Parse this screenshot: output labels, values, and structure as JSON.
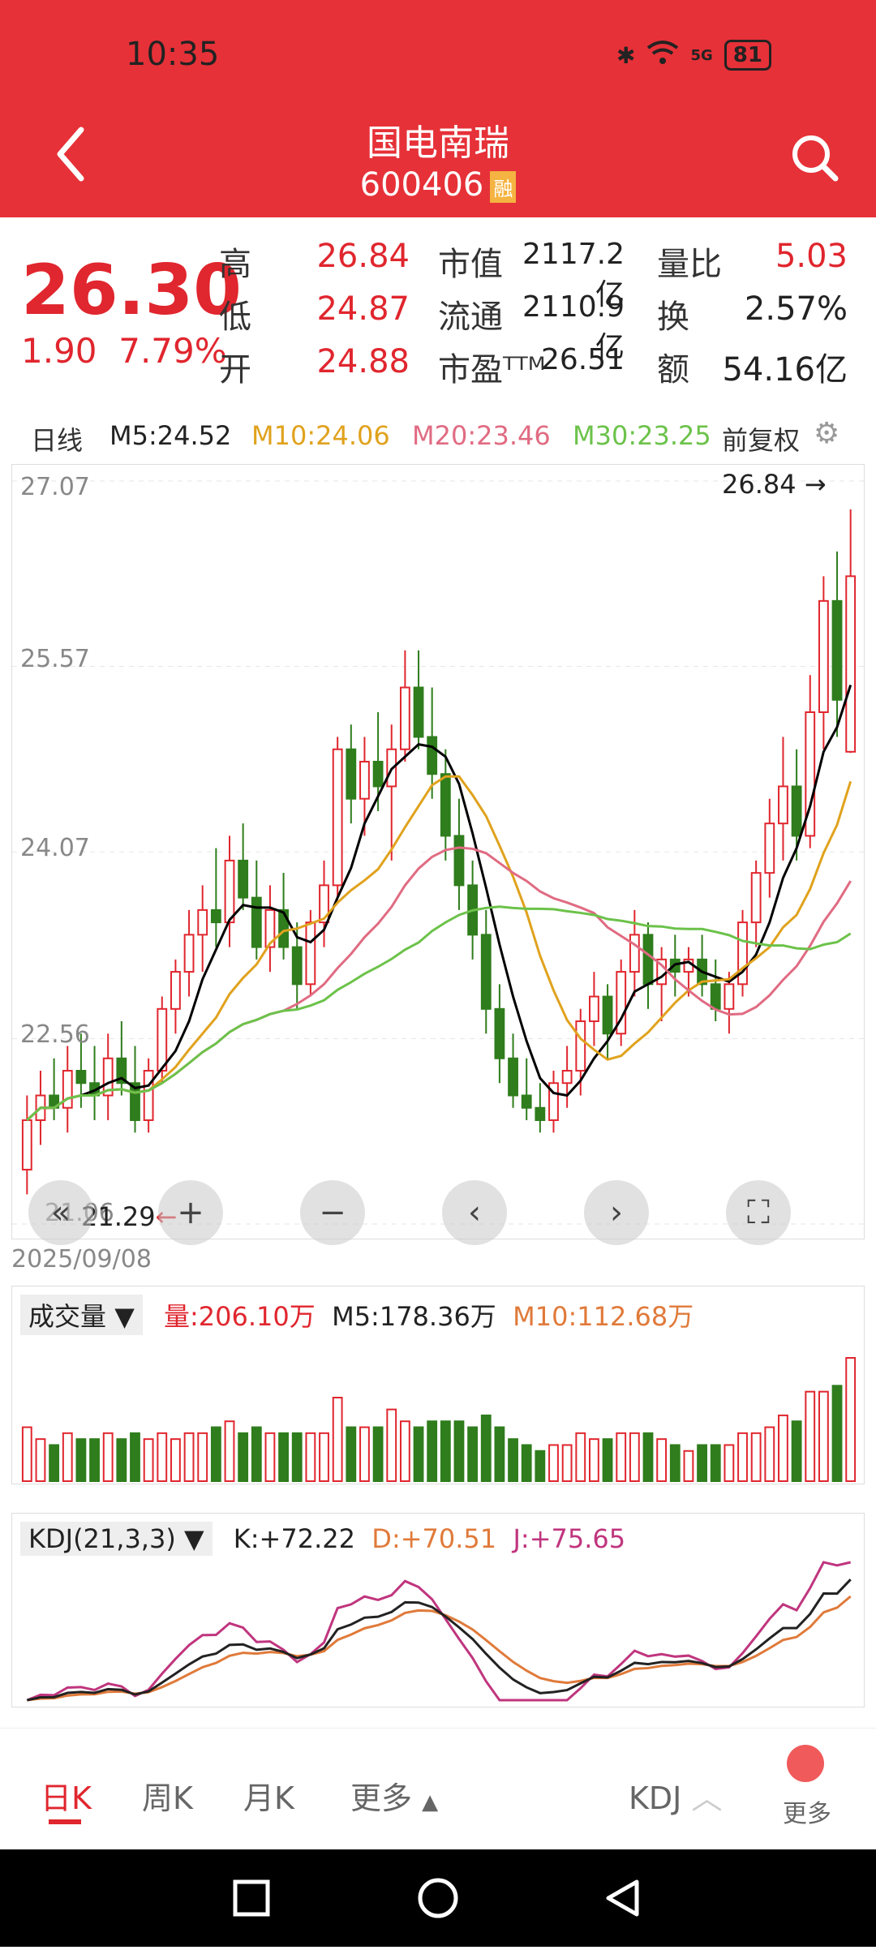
{
  "status": {
    "time": "10:35",
    "network": "5G",
    "battery": "81"
  },
  "header": {
    "title": "国电南瑞",
    "code": "600406",
    "badge": "融"
  },
  "quote": {
    "price": "26.30",
    "change": "1.90",
    "change_pct": "7.79%",
    "high_label": "高",
    "high": "26.84",
    "low_label": "低",
    "low": "24.87",
    "open_label": "开",
    "open": "24.88",
    "mktcap_label": "市值",
    "mktcap": "2117.2亿",
    "float_label": "流通",
    "float": "2110.9亿",
    "pe_label": "市盈ᵀᵀᴹ",
    "pe": "26.51",
    "volratio_label": "量比",
    "volratio": "5.03",
    "turnover_label": "换",
    "turnover": "2.57%",
    "amount_label": "额",
    "amount": "54.16亿"
  },
  "ma": {
    "period": "日线",
    "m5": "M5:24.52",
    "m10": "M10:24.06",
    "m20": "M20:23.46",
    "m30": "M30:23.25",
    "adjust": "前复权"
  },
  "chart_axes": {
    "y1": "27.07",
    "y2": "25.57",
    "y3": "24.07",
    "y4": "22.56",
    "y5": "21.06",
    "high_mark": "26.84",
    "low_mark": "21.29",
    "date": "2025/09/08"
  },
  "volume": {
    "dropdown": "成交量",
    "vol": "量:206.10万",
    "m5": "M5:178.36万",
    "m10": "M10:112.68万"
  },
  "kdj": {
    "dropdown": "KDJ(21,3,3)",
    "k": "K:+72.22",
    "d": "D:+70.51",
    "j": "J:+75.65"
  },
  "tabs": {
    "day": "日K",
    "week": "周K",
    "month": "月K",
    "more": "更多",
    "indicator": "KDJ",
    "more2": "更多"
  },
  "colors": {
    "up": "#e0262e",
    "down": "#2f7d1c",
    "m5": "#000000",
    "m10": "#e0a21d",
    "m20": "#e06b82",
    "m30": "#6cc24a"
  },
  "chart_data": {
    "type": "candlestick",
    "title": "",
    "ylim": [
      21.06,
      27.07
    ],
    "y_ticks": [
      27.07,
      25.57,
      24.07,
      22.56,
      21.06
    ],
    "ohlc": [
      [
        21.5,
        22.1,
        21.3,
        21.9
      ],
      [
        21.9,
        22.3,
        21.7,
        22.1
      ],
      [
        22.1,
        22.4,
        21.9,
        22.0
      ],
      [
        22.0,
        22.5,
        21.8,
        22.3
      ],
      [
        22.3,
        22.6,
        22.0,
        22.2
      ],
      [
        22.2,
        22.5,
        21.9,
        22.1
      ],
      [
        22.1,
        22.6,
        21.9,
        22.4
      ],
      [
        22.4,
        22.7,
        22.1,
        22.2
      ],
      [
        22.2,
        22.5,
        21.8,
        21.9
      ],
      [
        21.9,
        22.4,
        21.8,
        22.3
      ],
      [
        22.3,
        22.9,
        22.2,
        22.8
      ],
      [
        22.8,
        23.2,
        22.6,
        23.1
      ],
      [
        23.1,
        23.6,
        22.9,
        23.4
      ],
      [
        23.4,
        23.8,
        23.1,
        23.6
      ],
      [
        23.6,
        24.1,
        23.3,
        23.5
      ],
      [
        23.5,
        24.2,
        23.3,
        24.0
      ],
      [
        24.0,
        24.3,
        23.6,
        23.7
      ],
      [
        23.7,
        24.0,
        23.2,
        23.3
      ],
      [
        23.3,
        23.8,
        23.1,
        23.6
      ],
      [
        23.6,
        23.9,
        23.2,
        23.3
      ],
      [
        23.3,
        23.5,
        22.8,
        23.0
      ],
      [
        23.0,
        23.6,
        22.9,
        23.5
      ],
      [
        23.5,
        24.0,
        23.3,
        23.8
      ],
      [
        23.8,
        25.0,
        23.7,
        24.9
      ],
      [
        24.9,
        25.1,
        24.3,
        24.5
      ],
      [
        24.5,
        25.0,
        24.2,
        24.8
      ],
      [
        24.8,
        25.2,
        24.4,
        24.6
      ],
      [
        24.6,
        25.1,
        24.0,
        24.9
      ],
      [
        24.9,
        25.7,
        24.8,
        25.4
      ],
      [
        25.4,
        25.7,
        24.9,
        25.0
      ],
      [
        25.0,
        25.4,
        24.5,
        24.7
      ],
      [
        24.7,
        24.9,
        24.0,
        24.2
      ],
      [
        24.2,
        24.5,
        23.6,
        23.8
      ],
      [
        23.8,
        24.0,
        23.2,
        23.4
      ],
      [
        23.4,
        23.6,
        22.6,
        22.8
      ],
      [
        22.8,
        23.0,
        22.2,
        22.4
      ],
      [
        22.4,
        22.6,
        22.0,
        22.1
      ],
      [
        22.1,
        22.4,
        21.9,
        22.0
      ],
      [
        22.0,
        22.2,
        21.8,
        21.9
      ],
      [
        21.9,
        22.3,
        21.8,
        22.2
      ],
      [
        22.2,
        22.5,
        22.0,
        22.3
      ],
      [
        22.3,
        22.8,
        22.1,
        22.7
      ],
      [
        22.7,
        23.1,
        22.5,
        22.9
      ],
      [
        22.9,
        23.0,
        22.4,
        22.6
      ],
      [
        22.6,
        23.2,
        22.5,
        23.1
      ],
      [
        23.1,
        23.6,
        22.9,
        23.4
      ],
      [
        23.4,
        23.5,
        22.8,
        23.0
      ],
      [
        23.0,
        23.3,
        22.7,
        23.2
      ],
      [
        23.2,
        23.4,
        22.9,
        23.1
      ],
      [
        23.1,
        23.3,
        22.9,
        23.2
      ],
      [
        23.2,
        23.4,
        22.9,
        23.0
      ],
      [
        23.0,
        23.2,
        22.7,
        22.8
      ],
      [
        22.8,
        23.1,
        22.6,
        23.0
      ],
      [
        23.0,
        23.6,
        22.9,
        23.5
      ],
      [
        23.5,
        24.0,
        23.3,
        23.9
      ],
      [
        23.9,
        24.5,
        23.7,
        24.3
      ],
      [
        24.3,
        25.0,
        24.0,
        24.6
      ],
      [
        24.6,
        24.9,
        24.0,
        24.2
      ],
      [
        24.2,
        25.5,
        24.1,
        25.2
      ],
      [
        25.2,
        26.3,
        24.9,
        26.1
      ],
      [
        26.1,
        26.5,
        25.0,
        25.3
      ],
      [
        24.88,
        26.84,
        24.87,
        26.3
      ]
    ]
  }
}
